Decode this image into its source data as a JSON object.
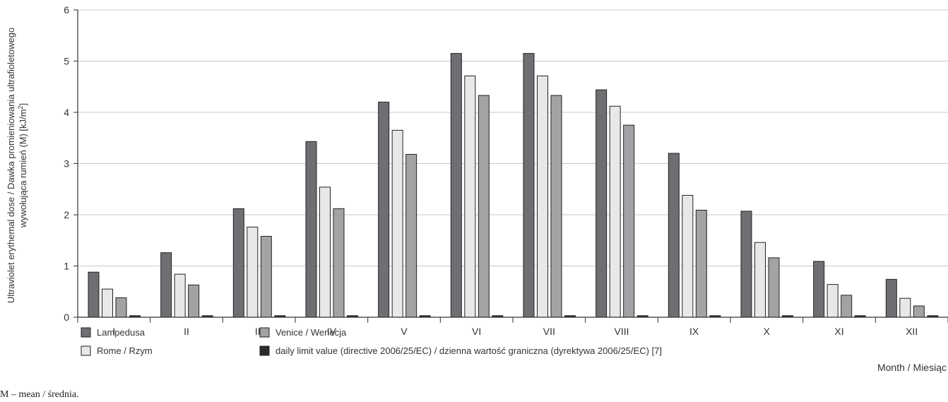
{
  "chart_data": {
    "type": "bar",
    "ylabel_line1": "Ultraviolet erythemal dose / Dawka promieniowania ultrafioletowego",
    "ylabel_line2": "wywołująca rumień (M) [kJ/m",
    "ylabel_sup": "2",
    "ylabel_end": "]",
    "xlabel": "Month / Miesiąc",
    "ylim": [
      0,
      6
    ],
    "yticks": [
      "0",
      "1",
      "2",
      "3",
      "4",
      "5",
      "6"
    ],
    "categories": [
      "I",
      "II",
      "III",
      "IV",
      "V",
      "VI",
      "VII",
      "VIII",
      "IX",
      "X",
      "XI",
      "XII"
    ],
    "grid": true,
    "legend_position": "bottom",
    "series": [
      {
        "name": "Lampedusa",
        "color": "#6f6f73",
        "values": [
          0.88,
          1.26,
          2.12,
          3.43,
          4.2,
          5.15,
          5.15,
          4.44,
          3.2,
          2.07,
          1.09,
          0.74
        ]
      },
      {
        "name": "Rome / Rzym",
        "color": "#e8e8ea",
        "values": [
          0.55,
          0.84,
          1.76,
          2.54,
          3.65,
          4.71,
          4.71,
          4.12,
          2.38,
          1.46,
          0.64,
          0.37
        ]
      },
      {
        "name": "Venice / Wenecja",
        "color": "#a3a3a6",
        "values": [
          0.38,
          0.63,
          1.58,
          2.12,
          3.18,
          4.33,
          4.33,
          3.75,
          2.09,
          1.16,
          0.43,
          0.22
        ]
      },
      {
        "name": "daily limit value (directive 2006/25/EC) / dzienna wartość graniczna (dyrektywa 2006/25/EC) [7]",
        "color": "#2b2b2e",
        "values": [
          0.03,
          0.03,
          0.03,
          0.03,
          0.03,
          0.03,
          0.03,
          0.03,
          0.03,
          0.03,
          0.03,
          0.03
        ]
      }
    ]
  },
  "footnote": "M – mean / średnia."
}
